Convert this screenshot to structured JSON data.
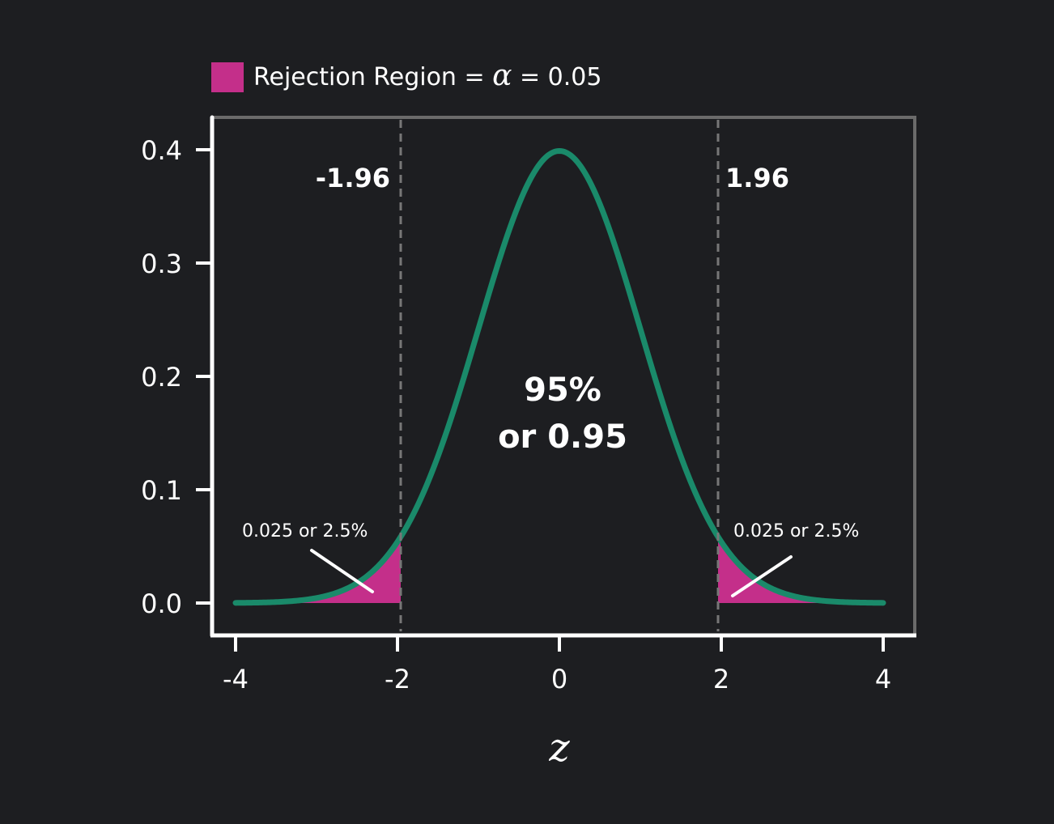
{
  "chart_data": {
    "type": "area",
    "distribution": "standard normal density",
    "xlabel": "z",
    "ylabel": "",
    "xlim": [
      -4,
      4
    ],
    "ylim": [
      0,
      0.4
    ],
    "x_ticks": [
      "-4",
      "-2",
      "0",
      "2",
      "4"
    ],
    "y_ticks": [
      "0.0",
      "0.1",
      "0.2",
      "0.3",
      "0.4"
    ],
    "grid": false,
    "legend": {
      "placement": "top-left",
      "entry_prefix": "Rejection Region = ",
      "symbol": "α",
      "entry_suffix": " = 0.05",
      "color": "#c42f8a"
    },
    "critical_values": [
      -1.96,
      1.96
    ],
    "critical_labels": [
      "-1.96",
      "1.96"
    ],
    "center_label_line1": "95%",
    "center_label_line2": "or 0.95",
    "tail_labels": [
      "0.025 or 2.5%",
      "0.025 or 2.5%"
    ],
    "curve_color": "#1a8a6a",
    "tail_color": "#c42f8a",
    "background_color": "#1d1e21"
  }
}
